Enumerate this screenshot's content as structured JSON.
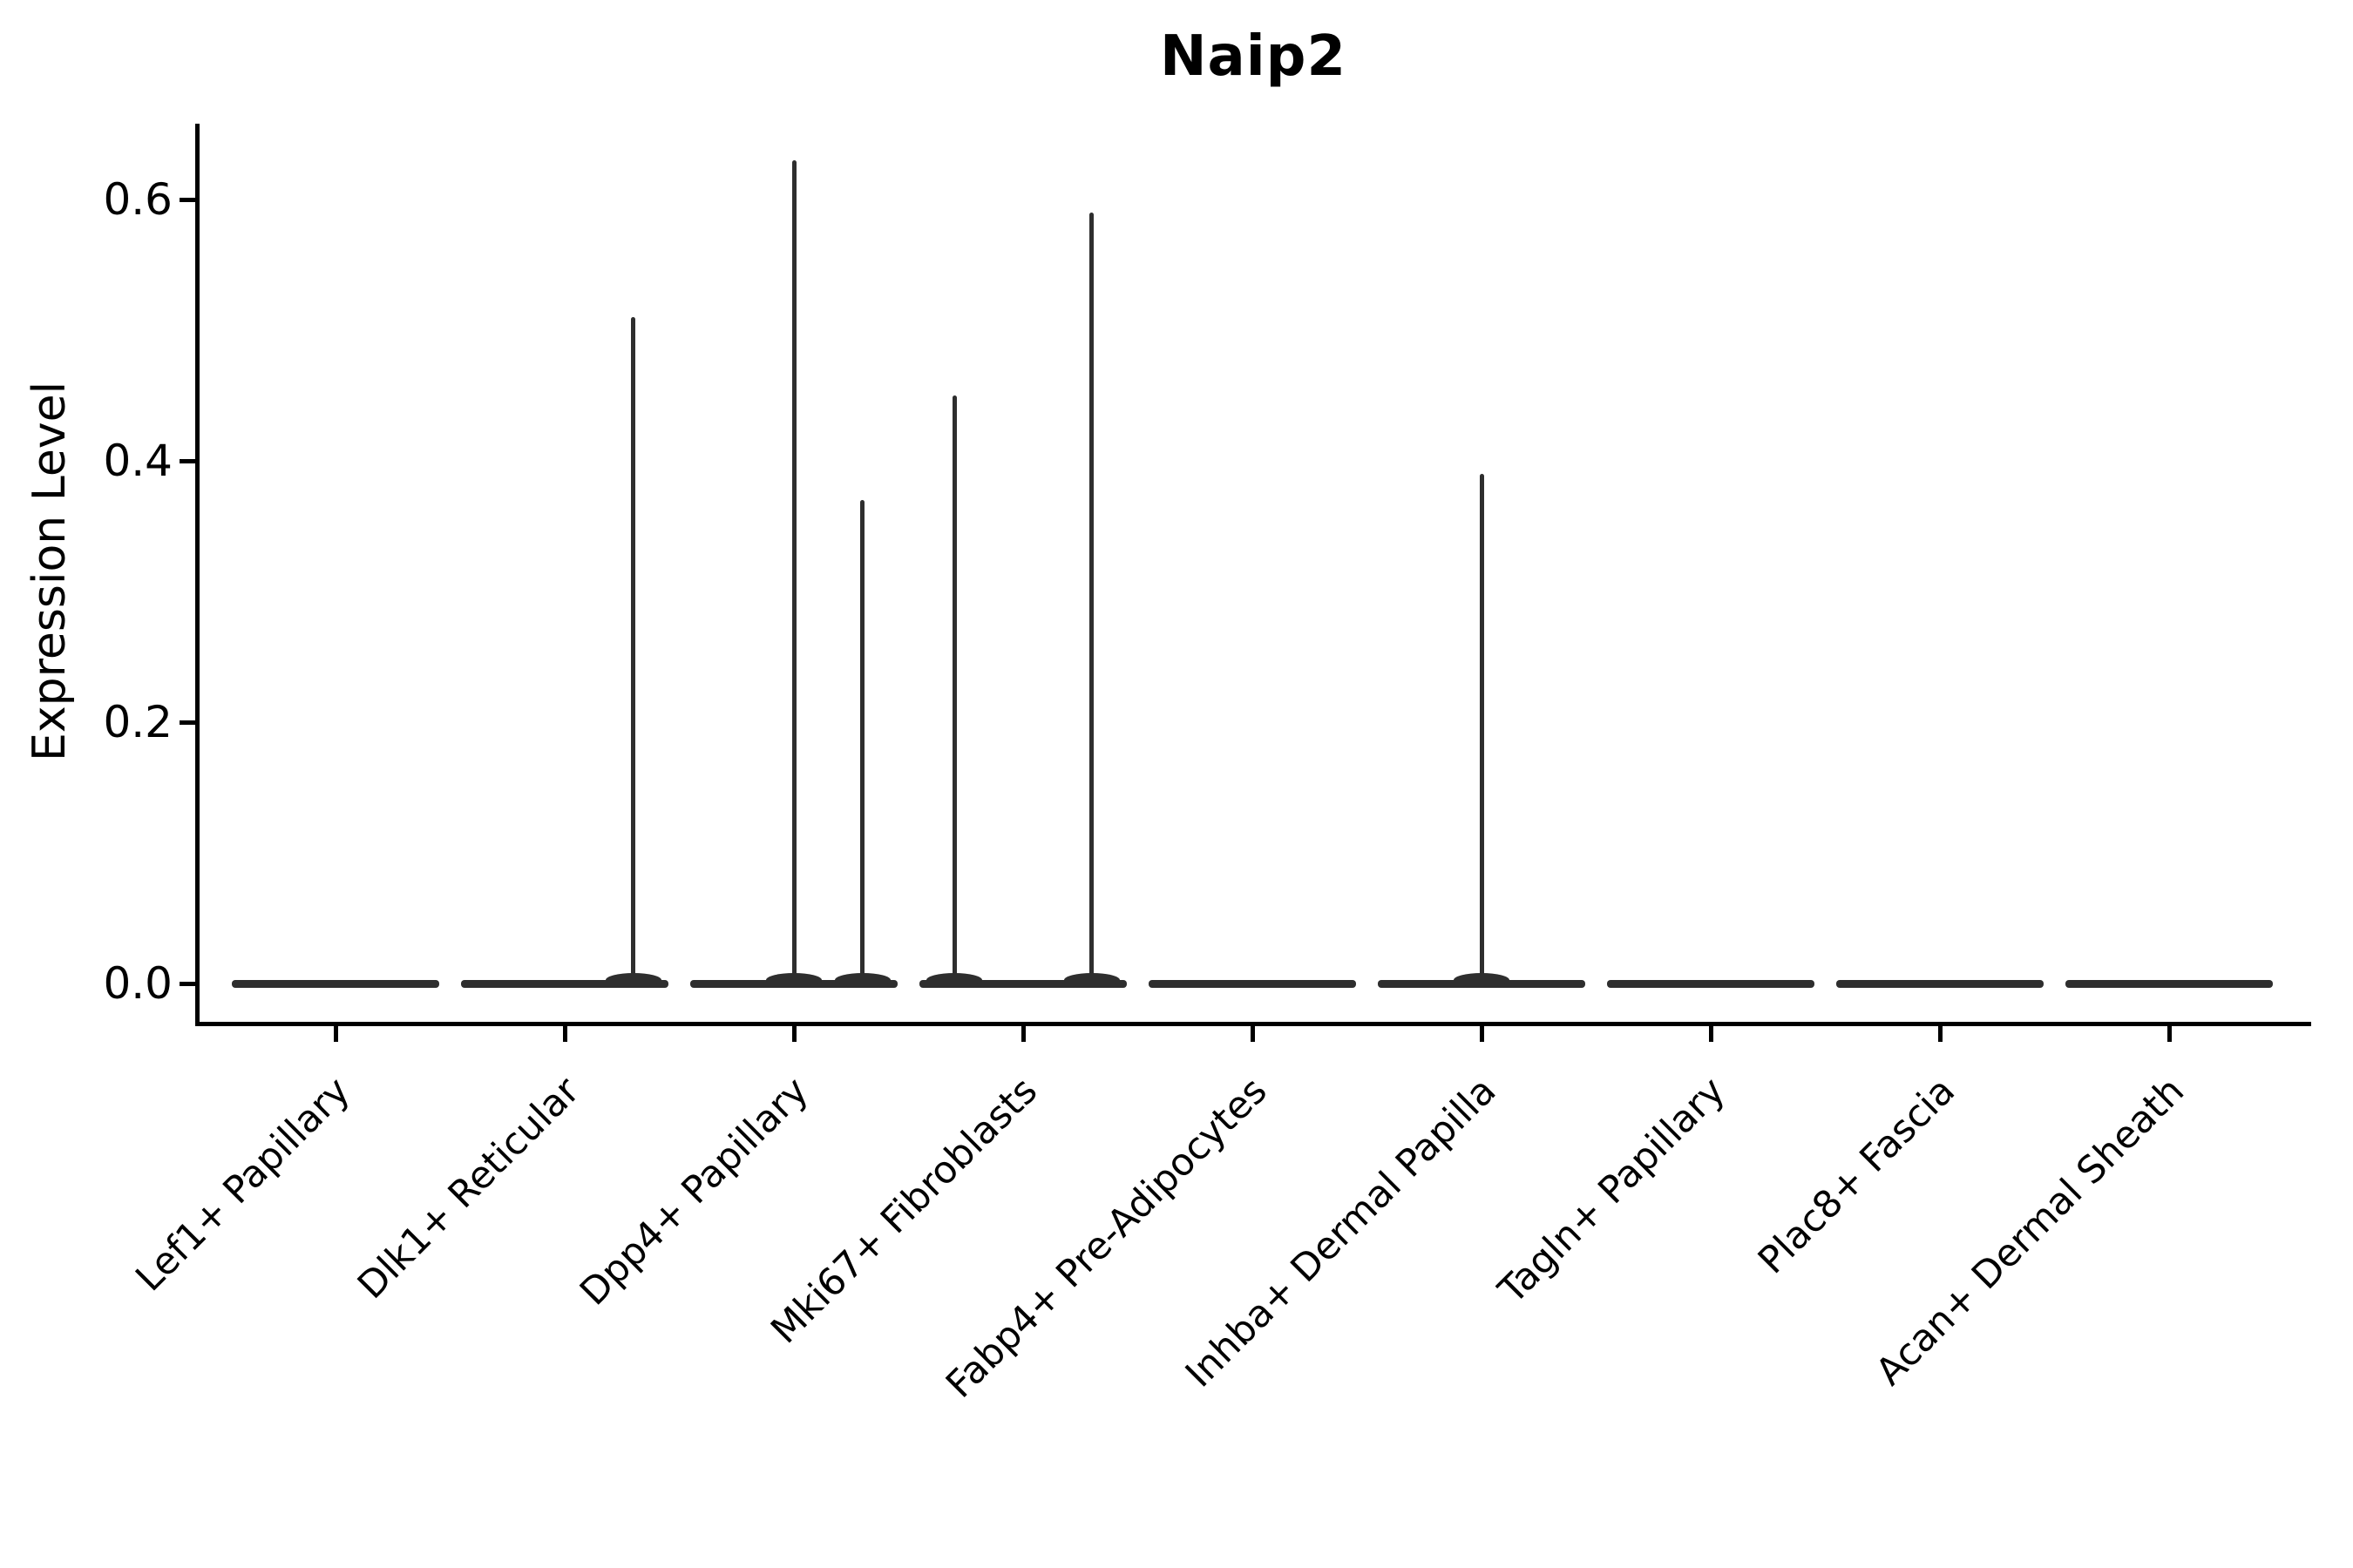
{
  "figure": {
    "title": "Naip2",
    "y_axis_label": "Expression Level"
  },
  "colors": {
    "violin_line": "#2e2e2e",
    "axis_line": "#000000",
    "text": "#000000",
    "background": "#ffffff"
  },
  "chart_data": {
    "type": "violin",
    "title": "Naip2",
    "xlabel": "",
    "ylabel": "Expression Level",
    "categories": [
      "Lef1+ Papillary",
      "Dlk1+ Reticular",
      "Dpp4+ Papillary",
      "Mki67+ Fibroblasts",
      "Fabp4+ Pre-Adipocytes",
      "Inhba+ Dermal Papilla",
      "Tagln+ Papillary",
      "Plac8+ Fascia",
      "Acan+ Dermal Sheath"
    ],
    "yticks": [
      0.0,
      0.2,
      0.4,
      0.6
    ],
    "ytick_labels": [
      "0.0",
      "0.2",
      "0.4",
      "0.6"
    ],
    "ylim": [
      -0.031,
      0.658
    ],
    "baseline_value": 0.0,
    "violin_width_units": 0.9,
    "spikes": [
      {
        "category": "Dlk1+ Reticular",
        "category_index": 1,
        "offset_units": 0.3,
        "value": 0.51
      },
      {
        "category": "Dpp4+ Papillary",
        "category_index": 2,
        "offset_units": 0.0,
        "value": 0.63
      },
      {
        "category": "Dpp4+ Papillary",
        "category_index": 2,
        "offset_units": 0.3,
        "value": 0.37
      },
      {
        "category": "Mki67+ Fibroblasts",
        "category_index": 3,
        "offset_units": -0.3,
        "value": 0.45
      },
      {
        "category": "Mki67+ Fibroblasts",
        "category_index": 3,
        "offset_units": 0.3,
        "value": 0.59
      },
      {
        "category": "Inhba+ Dermal Papilla",
        "category_index": 5,
        "offset_units": 0.0,
        "value": 0.39
      }
    ],
    "layout_hints": {
      "grid": false,
      "legend": false,
      "spines": [
        "left",
        "bottom"
      ],
      "x_tick_label_rotation_deg": 45,
      "title_bold": true
    }
  }
}
